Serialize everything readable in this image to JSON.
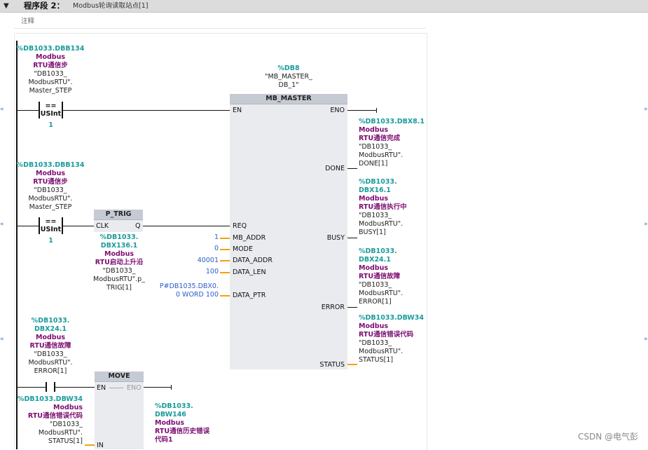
{
  "network": {
    "collapse_icon": "collapse-triangle-icon",
    "segment_label": "程序段 2：",
    "segment_title": "Modbus轮询读取站点[1]",
    "comment": "注释"
  },
  "rung1_contact": {
    "address": "%DB1033.DBB134",
    "sym1": "Modbus",
    "sym2": "RTU通信步",
    "db1": "\"DB1033_",
    "db2": "ModbusRTU\".",
    "db3": "Master_STEP",
    "op": "==",
    "type": "USInt",
    "value": "1"
  },
  "mb_master": {
    "instance_address": "%DB8",
    "instance_name1": "\"MB_MASTER_",
    "instance_name2": "DB_1\"",
    "title": "MB_MASTER",
    "pin_en": "EN",
    "pin_eno": "ENO",
    "pin_req": "REQ",
    "pin_mb_addr": "MB_ADDR",
    "pin_mode": "MODE",
    "pin_data_addr": "DATA_ADDR",
    "pin_data_len": "DATA_LEN",
    "pin_data_ptr": "DATA_PTR",
    "pin_done": "DONE",
    "pin_busy": "BUSY",
    "pin_error": "ERROR",
    "pin_status": "STATUS",
    "val_mb_addr": "1",
    "val_mode": "0",
    "val_data_addr": "40001",
    "val_data_len": "100",
    "val_data_ptr1": "P#DB1035.DBX0.",
    "val_data_ptr2": "0 WORD 100"
  },
  "out_done": {
    "address": "%DB1033.DBX8.1",
    "sym1": "Modbus",
    "sym2": "RTU通信完成",
    "db1": "\"DB1033_",
    "db2": "ModbusRTU\".",
    "db3": "DONE[1]"
  },
  "out_busy": {
    "address1": "%DB1033.",
    "address2": "DBX16.1",
    "sym1": "Modbus",
    "sym2": "RTU通信执行中",
    "db1": "\"DB1033_",
    "db2": "ModbusRTU\".",
    "db3": "BUSY[1]"
  },
  "out_error": {
    "address1": "%DB1033.",
    "address2": "DBX24.1",
    "sym1": "Modbus",
    "sym2": "RTU通信故障",
    "db1": "\"DB1033_",
    "db2": "ModbusRTU\".",
    "db3": "ERROR[1]"
  },
  "out_status": {
    "address": "%DB1033.DBW34",
    "sym1": "Modbus",
    "sym2": "RTU通信错误代码",
    "db1": "\"DB1033_",
    "db2": "ModbusRTU\".",
    "db3": "STATUS[1]"
  },
  "rung2_contact": {
    "address": "%DB1033.DBB134",
    "sym1": "Modbus",
    "sym2": "RTU通信步",
    "db1": "\"DB1033_",
    "db2": "ModbusRTU\".",
    "db3": "Master_STEP",
    "op": "==",
    "type": "USInt",
    "value": "1"
  },
  "p_trig": {
    "title": "P_TRIG",
    "pin_clk": "CLK",
    "pin_q": "Q",
    "address1": "%DB1033.",
    "address2": "DBX136.1",
    "sym1": "Modbus",
    "sym2": "RTU启动上升沿",
    "db1": "\"DB1033_",
    "db2": "ModbusRTU\".p_",
    "db3": "TRIG[1]"
  },
  "rung3_contact": {
    "address1": "%DB1033.",
    "address2": "DBX24.1",
    "sym1": "Modbus",
    "sym2": "RTU通信故障",
    "db1": "\"DB1033_",
    "db2": "ModbusRTU\".",
    "db3": "ERROR[1]"
  },
  "move": {
    "title": "MOVE",
    "pin_en": "EN",
    "pin_eno": "ENO",
    "pin_in": "IN",
    "in_address": "%DB1033.DBW34",
    "in_sym1": "Modbus",
    "in_sym2": "RTU通信错误代码",
    "in_db1": "\"DB1033_",
    "in_db2": "ModbusRTU\".",
    "in_db3": "STATUS[1]",
    "out_address1": "%DB1033.",
    "out_address2": "DBW146",
    "out_sym1": "Modbus",
    "out_sym2": "RTU通信历史错误",
    "out_sym3": "代码1"
  },
  "side_arrows": {
    "left": "«",
    "right": "»"
  },
  "watermark": "CSDN @电气彭"
}
